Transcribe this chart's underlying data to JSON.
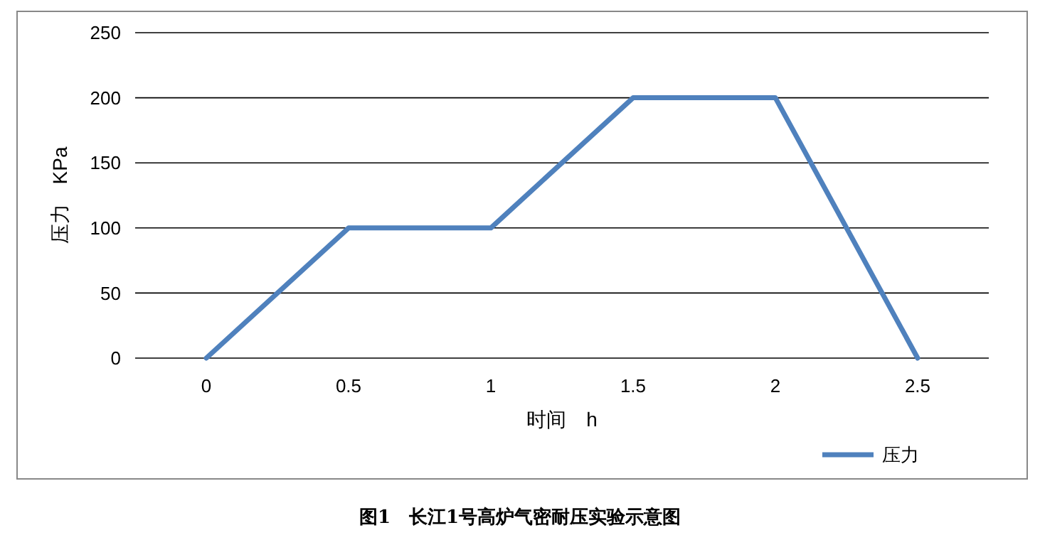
{
  "chart_data": {
    "type": "line",
    "title": "图1　长江1号高炉气密耐压实验示意图",
    "xlabel": "时间　h",
    "ylabel": "压力　KPa",
    "categories": [
      "0",
      "0.5",
      "1",
      "1.5",
      "2",
      "2.5"
    ],
    "series": [
      {
        "name": "压力",
        "color": "#4f81bd",
        "values": [
          0,
          100,
          100,
          200,
          200,
          0
        ]
      }
    ],
    "ylim": [
      0,
      250
    ],
    "yticks": [
      0,
      50,
      100,
      150,
      200,
      250
    ],
    "grid": "y",
    "legend": "bottom right",
    "marker": "none",
    "line_style": "solid"
  }
}
